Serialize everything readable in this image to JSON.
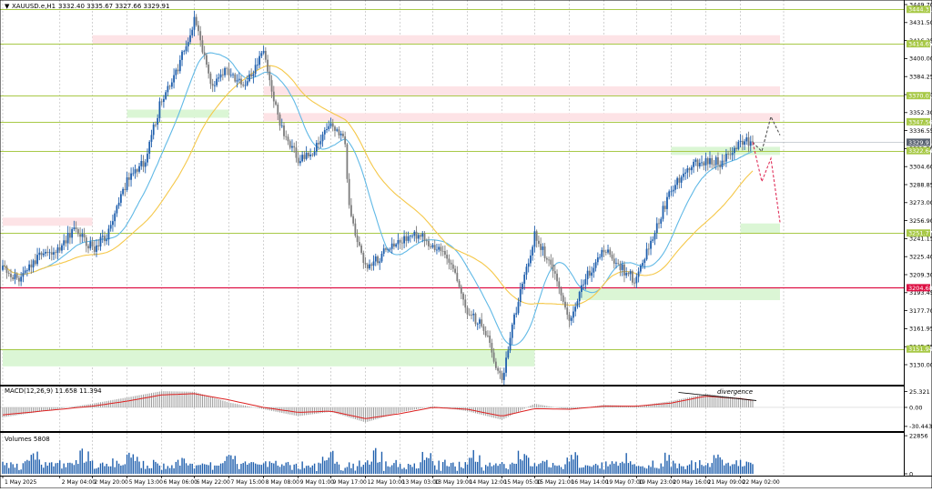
{
  "header": {
    "arrow_icon": "triangle-down-icon",
    "title": "XAUUSD.e,H1",
    "ohlc": "3332.40 3335.67 3327.66 3329.91"
  },
  "colors": {
    "bull": "#1f5fad",
    "bear": "#7c7c7c",
    "ma_fast": "#61b9e6",
    "ma_slow": "#f5c84a",
    "sr_line": "#a8c948",
    "key_line": "#dd1144",
    "resistance_zone": "#fde3e6",
    "support_zone": "#dbf6d5",
    "macd_signal": "#dd2222",
    "macd_hist": "#9a9a9a",
    "volume": "#1f5fad",
    "grid": "#c8c8c8",
    "current_badge": "#596270",
    "forecast_up": "#555555",
    "forecast_down": "#e0305a"
  },
  "chart_data": [
    {
      "type": "candlestick",
      "title": "XAUUSD.e,H1",
      "ylim": [
        3122.0,
        3450.0
      ],
      "price_ticks": [
        "3449.70",
        "3431.50",
        "3416.25",
        "3400.00",
        "3384.25",
        "3368.00",
        "3352.30",
        "3336.55",
        "3320.50",
        "3304.60",
        "3288.85",
        "3273.00",
        "3256.90",
        "3241.15",
        "3225.40",
        "3209.30",
        "3193.45",
        "3177.70",
        "3161.95",
        "3145.75",
        "3130.00"
      ],
      "time_labels": [
        "1 May 2025",
        "2 May 04:00",
        "2 May 20:00",
        "5 May 13:00",
        "6 May 06:00",
        "6 May 22:00",
        "7 May 15:00",
        "8 May 08:00",
        "9 May 01:00",
        "9 May 17:00",
        "12 May 10:00",
        "13 May 03:00",
        "13 May 19:00",
        "14 May 12:00",
        "15 May 05:00",
        "15 May 21:00",
        "16 May 14:00",
        "19 May 07:00",
        "19 May 23:00",
        "20 May 16:00",
        "21 May 09:00",
        "22 May 02:00"
      ],
      "levels": [
        {
          "price": 3444.31,
          "label": "3444.31",
          "kind": "support_resistance"
        },
        {
          "price": 3414.65,
          "label": "3414.65",
          "kind": "support_resistance"
        },
        {
          "price": 3370.01,
          "label": "3370.01",
          "kind": "support_resistance"
        },
        {
          "price": 3347.56,
          "label": "3347.56",
          "kind": "support_resistance"
        },
        {
          "price": 3329.91,
          "label": "3329.91",
          "kind": "current_price"
        },
        {
          "price": 3322.64,
          "label": "3322.64",
          "kind": "support_resistance"
        },
        {
          "price": 3251.77,
          "label": "3251.77",
          "kind": "support_resistance"
        },
        {
          "price": 3204.68,
          "label": "3204.68",
          "kind": "key_level"
        },
        {
          "price": 3151.94,
          "label": "3151.94",
          "kind": "support_resistance"
        }
      ],
      "zones": [
        {
          "kind": "resistance",
          "from": "2 May 20:00",
          "to": "forecast",
          "top": 3422,
          "bottom": 3414
        },
        {
          "kind": "resistance",
          "from": "8 May 08:00",
          "to": "forecast",
          "top": 3378,
          "bottom": 3370
        },
        {
          "kind": "resistance",
          "from": "8 May 08:00",
          "to": "forecast",
          "top": 3355,
          "bottom": 3348
        },
        {
          "kind": "resistance",
          "from": "1 May 2025",
          "to": "2 May 20:00",
          "top": 3265,
          "bottom": 3258
        },
        {
          "kind": "support",
          "from": "5 May 13:00",
          "to": "7 May 15:00",
          "top": 3358,
          "bottom": 3351
        },
        {
          "kind": "support",
          "from": "20 May 16:00",
          "to": "forecast",
          "top": 3326,
          "bottom": 3319
        },
        {
          "kind": "support",
          "from": "22 May 02:00",
          "to": "forecast",
          "top": 3260,
          "bottom": 3251
        },
        {
          "kind": "support",
          "from": "16 May 14:00",
          "to": "forecast",
          "top": 3204,
          "bottom": 3194
        },
        {
          "kind": "support",
          "from": "1 May 2025",
          "to": "15 May 21:00",
          "top": 3152,
          "bottom": 3137
        }
      ],
      "price_path": [
        [
          "1 May 2025",
          3220
        ],
        [
          "1 May 09:00",
          3211
        ],
        [
          "1 May 18:00",
          3233
        ],
        [
          "2 May 04:00",
          3240
        ],
        [
          "2 May 12:00",
          3257
        ],
        [
          "2 May 20:00",
          3238
        ],
        [
          "5 May 04:00",
          3252
        ],
        [
          "5 May 13:00",
          3296
        ],
        [
          "5 May 22:00",
          3315
        ],
        [
          "6 May 06:00",
          3368
        ],
        [
          "6 May 14:00",
          3395
        ],
        [
          "6 May 22:00",
          3436
        ],
        [
          "7 May 06:00",
          3380
        ],
        [
          "7 May 15:00",
          3392
        ],
        [
          "7 May 23:00",
          3377
        ],
        [
          "8 May 08:00",
          3408
        ],
        [
          "8 May 16:00",
          3346
        ],
        [
          "9 May 01:00",
          3316
        ],
        [
          "9 May 09:00",
          3322
        ],
        [
          "9 May 17:00",
          3345
        ],
        [
          "10 May 01:00",
          3330
        ],
        [
          "12 May 02:00",
          3272
        ],
        [
          "12 May 10:00",
          3222
        ],
        [
          "12 May 18:00",
          3233
        ],
        [
          "13 May 03:00",
          3245
        ],
        [
          "13 May 11:00",
          3250
        ],
        [
          "13 May 19:00",
          3242
        ],
        [
          "14 May 03:00",
          3228
        ],
        [
          "14 May 12:00",
          3185
        ],
        [
          "14 May 20:00",
          3170
        ],
        [
          "15 May 05:00",
          3125
        ],
        [
          "15 May 13:00",
          3195
        ],
        [
          "15 May 21:00",
          3250
        ],
        [
          "16 May 06:00",
          3220
        ],
        [
          "16 May 14:00",
          3174
        ],
        [
          "16 May 22:00",
          3212
        ],
        [
          "19 May 07:00",
          3238
        ],
        [
          "19 May 15:00",
          3222
        ],
        [
          "19 May 23:00",
          3210
        ],
        [
          "20 May 08:00",
          3255
        ],
        [
          "20 May 16:00",
          3288
        ],
        [
          "21 May 01:00",
          3308
        ],
        [
          "21 May 09:00",
          3315
        ],
        [
          "21 May 17:00",
          3312
        ],
        [
          "22 May 02:00",
          3332
        ],
        [
          "22 May 08:00",
          3329.91
        ]
      ],
      "forecast": {
        "up_path": [
          [
            "22 May 08:00",
            3329.91
          ],
          [
            "22 May 12:00",
            3322
          ],
          [
            "22 May 18:00",
            3352
          ],
          [
            "22 May 22:00",
            3336
          ]
        ],
        "down_path": [
          [
            "22 May 08:00",
            3329.91
          ],
          [
            "22 May 12:00",
            3296
          ],
          [
            "22 May 16:00",
            3316
          ],
          [
            "22 May 22:00",
            3261
          ]
        ]
      }
    },
    {
      "type": "histogram",
      "title": "MACD(12,26,9) 11.658 11.394",
      "ylim": [
        -35,
        32
      ],
      "ticks": [
        "25.321",
        "0.00",
        "-30.443"
      ],
      "histogram_profile": [
        [
          "1 May 2025",
          -16
        ],
        [
          "2 May 20:00",
          6
        ],
        [
          "5 May 13:00",
          16
        ],
        [
          "6 May 06:00",
          26
        ],
        [
          "6 May 22:00",
          25
        ],
        [
          "7 May 15:00",
          8
        ],
        [
          "8 May 08:00",
          -3
        ],
        [
          "9 May 01:00",
          -14
        ],
        [
          "9 May 17:00",
          -7
        ],
        [
          "12 May 10:00",
          -24
        ],
        [
          "13 May 03:00",
          -8
        ],
        [
          "13 May 19:00",
          2
        ],
        [
          "14 May 12:00",
          -6
        ],
        [
          "15 May 05:00",
          -20
        ],
        [
          "15 May 21:00",
          6
        ],
        [
          "16 May 14:00",
          -4
        ],
        [
          "19 May 07:00",
          4
        ],
        [
          "19 May 23:00",
          2
        ],
        [
          "20 May 16:00",
          10
        ],
        [
          "21 May 09:00",
          22
        ],
        [
          "22 May 02:00",
          15
        ],
        [
          "22 May 08:00",
          12
        ]
      ],
      "signal_profile": [
        [
          "1 May 2025",
          -12
        ],
        [
          "2 May 20:00",
          2
        ],
        [
          "5 May 13:00",
          10
        ],
        [
          "6 May 06:00",
          20
        ],
        [
          "6 May 22:00",
          22
        ],
        [
          "7 May 15:00",
          12
        ],
        [
          "8 May 08:00",
          0
        ],
        [
          "9 May 01:00",
          -8
        ],
        [
          "9 May 17:00",
          -6
        ],
        [
          "12 May 10:00",
          -18
        ],
        [
          "13 May 03:00",
          -10
        ],
        [
          "13 May 19:00",
          0
        ],
        [
          "14 May 12:00",
          -3
        ],
        [
          "15 May 05:00",
          -14
        ],
        [
          "15 May 21:00",
          -2
        ],
        [
          "16 May 14:00",
          -3
        ],
        [
          "19 May 07:00",
          2
        ],
        [
          "19 May 23:00",
          2
        ],
        [
          "20 May 16:00",
          7
        ],
        [
          "21 May 09:00",
          18
        ],
        [
          "22 May 02:00",
          14
        ],
        [
          "22 May 08:00",
          11.394
        ]
      ],
      "annotation": "divergence"
    },
    {
      "type": "bar",
      "title": "Volumes 5808",
      "ylim": [
        0,
        24000
      ],
      "ticks": [
        "22856",
        "0"
      ],
      "series_name": "Volumes",
      "last_value": 5808
    }
  ]
}
